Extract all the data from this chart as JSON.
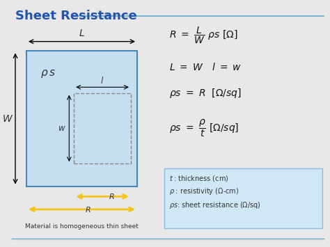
{
  "bg_color": "#e8e8e8",
  "title": "Sheet Resistance",
  "title_color": "#2255aa",
  "title_line_color": "#66aacc",
  "box_fill_color": "#c5dff0",
  "box_edge_color": "#4488bb",
  "arrow_color": "#f5c518",
  "text_color": "#333333",
  "formula_color": "#111111",
  "note_box_color": "#d0e8f5",
  "note_box_edge": "#88bbdd",
  "caption": "Material is homogeneous thin sheet",
  "note1": "$t\\;$: thickness (cm)",
  "note2": "$\\rho\\;$: resistivity ($\\Omega$-cm)",
  "note3": "$\\rho s$: sheet resistance ($\\Omega$/sq)"
}
